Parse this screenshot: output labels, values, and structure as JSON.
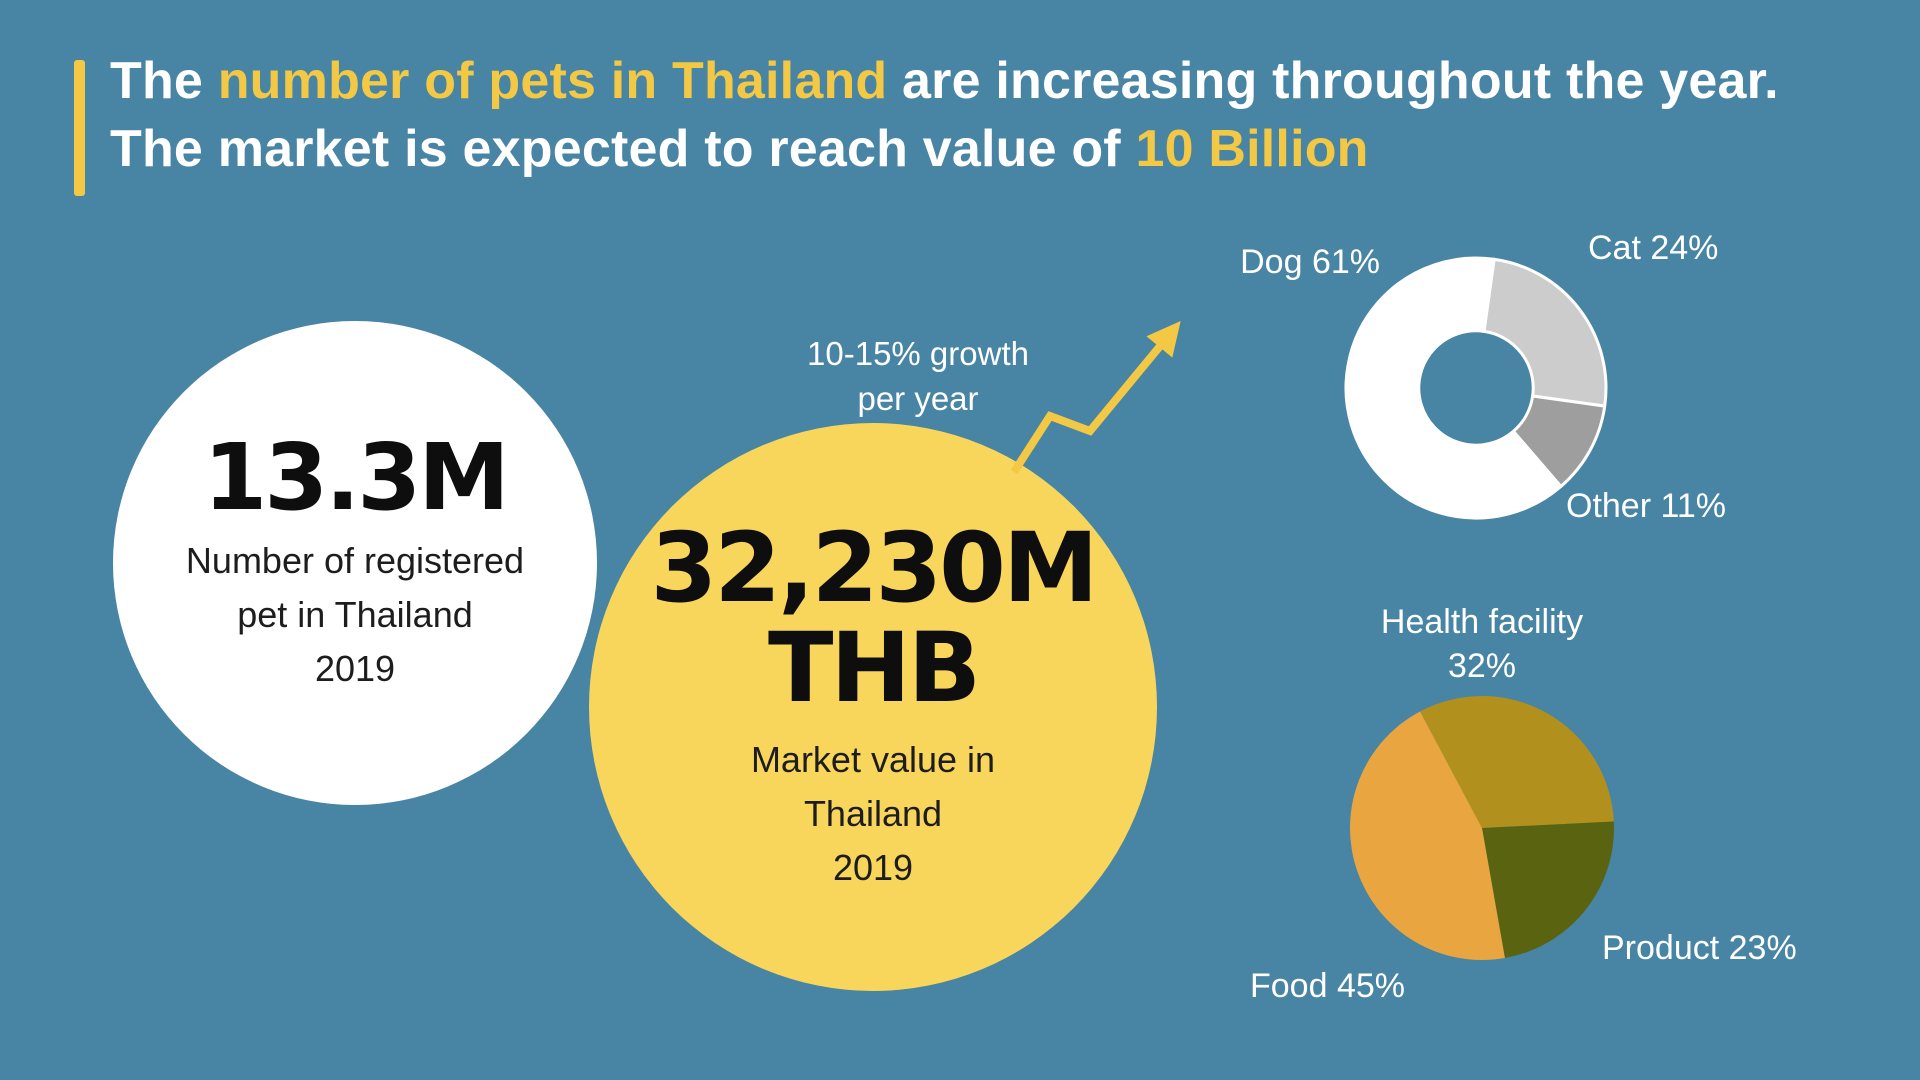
{
  "colors": {
    "background": "#4884A3",
    "accent_yellow": "#F3C845",
    "bubble_yellow": "#F8D65C",
    "text_white": "#FFFFFF",
    "text_dark": "#111111"
  },
  "title": {
    "segments": [
      {
        "text": "The ",
        "highlight": false
      },
      {
        "text": "number of pets in Thailand",
        "highlight": true
      },
      {
        "text": " are increasing throughout the year. The market is expected to reach value of ",
        "highlight": false
      },
      {
        "text": "10 Billion",
        "highlight": true
      }
    ]
  },
  "bubbles": {
    "registered": {
      "value": "13.3M",
      "label": "Number of registered\npet in Thailand\n2019"
    },
    "market": {
      "value": "32,230M",
      "unit": "THB",
      "label": "Market value in\nThailand\n2019"
    },
    "growth_note": "10-15% growth\nper year"
  },
  "chart_data": [
    {
      "id": "pet-type-share",
      "type": "pie",
      "variant": "donut",
      "inner_radius_ratio": 0.44,
      "start_angle": 8,
      "separator_color": "#FFFFFF",
      "slices": [
        {
          "label": "Cat",
          "value": 24,
          "display": "Cat 24%",
          "color": "#CCCCCC"
        },
        {
          "label": "Other",
          "value": 11,
          "display": "Other 11%",
          "color": "#9E9E9E"
        },
        {
          "label": "Dog",
          "value": 61,
          "display": "Dog 61%",
          "color": "#FFFFFF"
        }
      ]
    },
    {
      "id": "market-share-by-category",
      "type": "pie",
      "variant": "pie",
      "inner_radius_ratio": 0,
      "start_angle": -28,
      "slices": [
        {
          "label": "Health facility",
          "value": 32,
          "display": "Health facility\n32%",
          "color": "#B2901D"
        },
        {
          "label": "Product",
          "value": 23,
          "display": "Product 23%",
          "color": "#5A6410"
        },
        {
          "label": "Food",
          "value": 45,
          "display": "Food 45%",
          "color": "#E8A540"
        }
      ]
    }
  ]
}
